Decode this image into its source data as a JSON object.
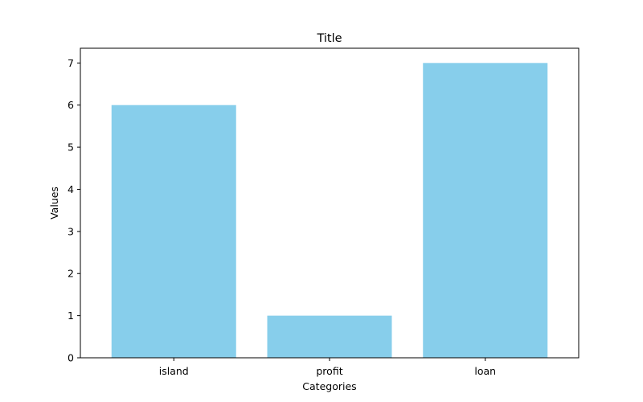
{
  "chart_data": {
    "type": "bar",
    "title": "Title",
    "xlabel": "Categories",
    "ylabel": "Values",
    "categories": [
      "island",
      "profit",
      "loan"
    ],
    "values": [
      6,
      1,
      7
    ],
    "ylim": [
      0,
      7.35
    ],
    "yticks": [
      0,
      1,
      2,
      3,
      4,
      5,
      6,
      7
    ],
    "ytick_labels": [
      "0",
      "1",
      "2",
      "3",
      "4",
      "5",
      "6",
      "7"
    ],
    "bar_color": "#87ceeb",
    "grid": false,
    "legend": "none"
  }
}
